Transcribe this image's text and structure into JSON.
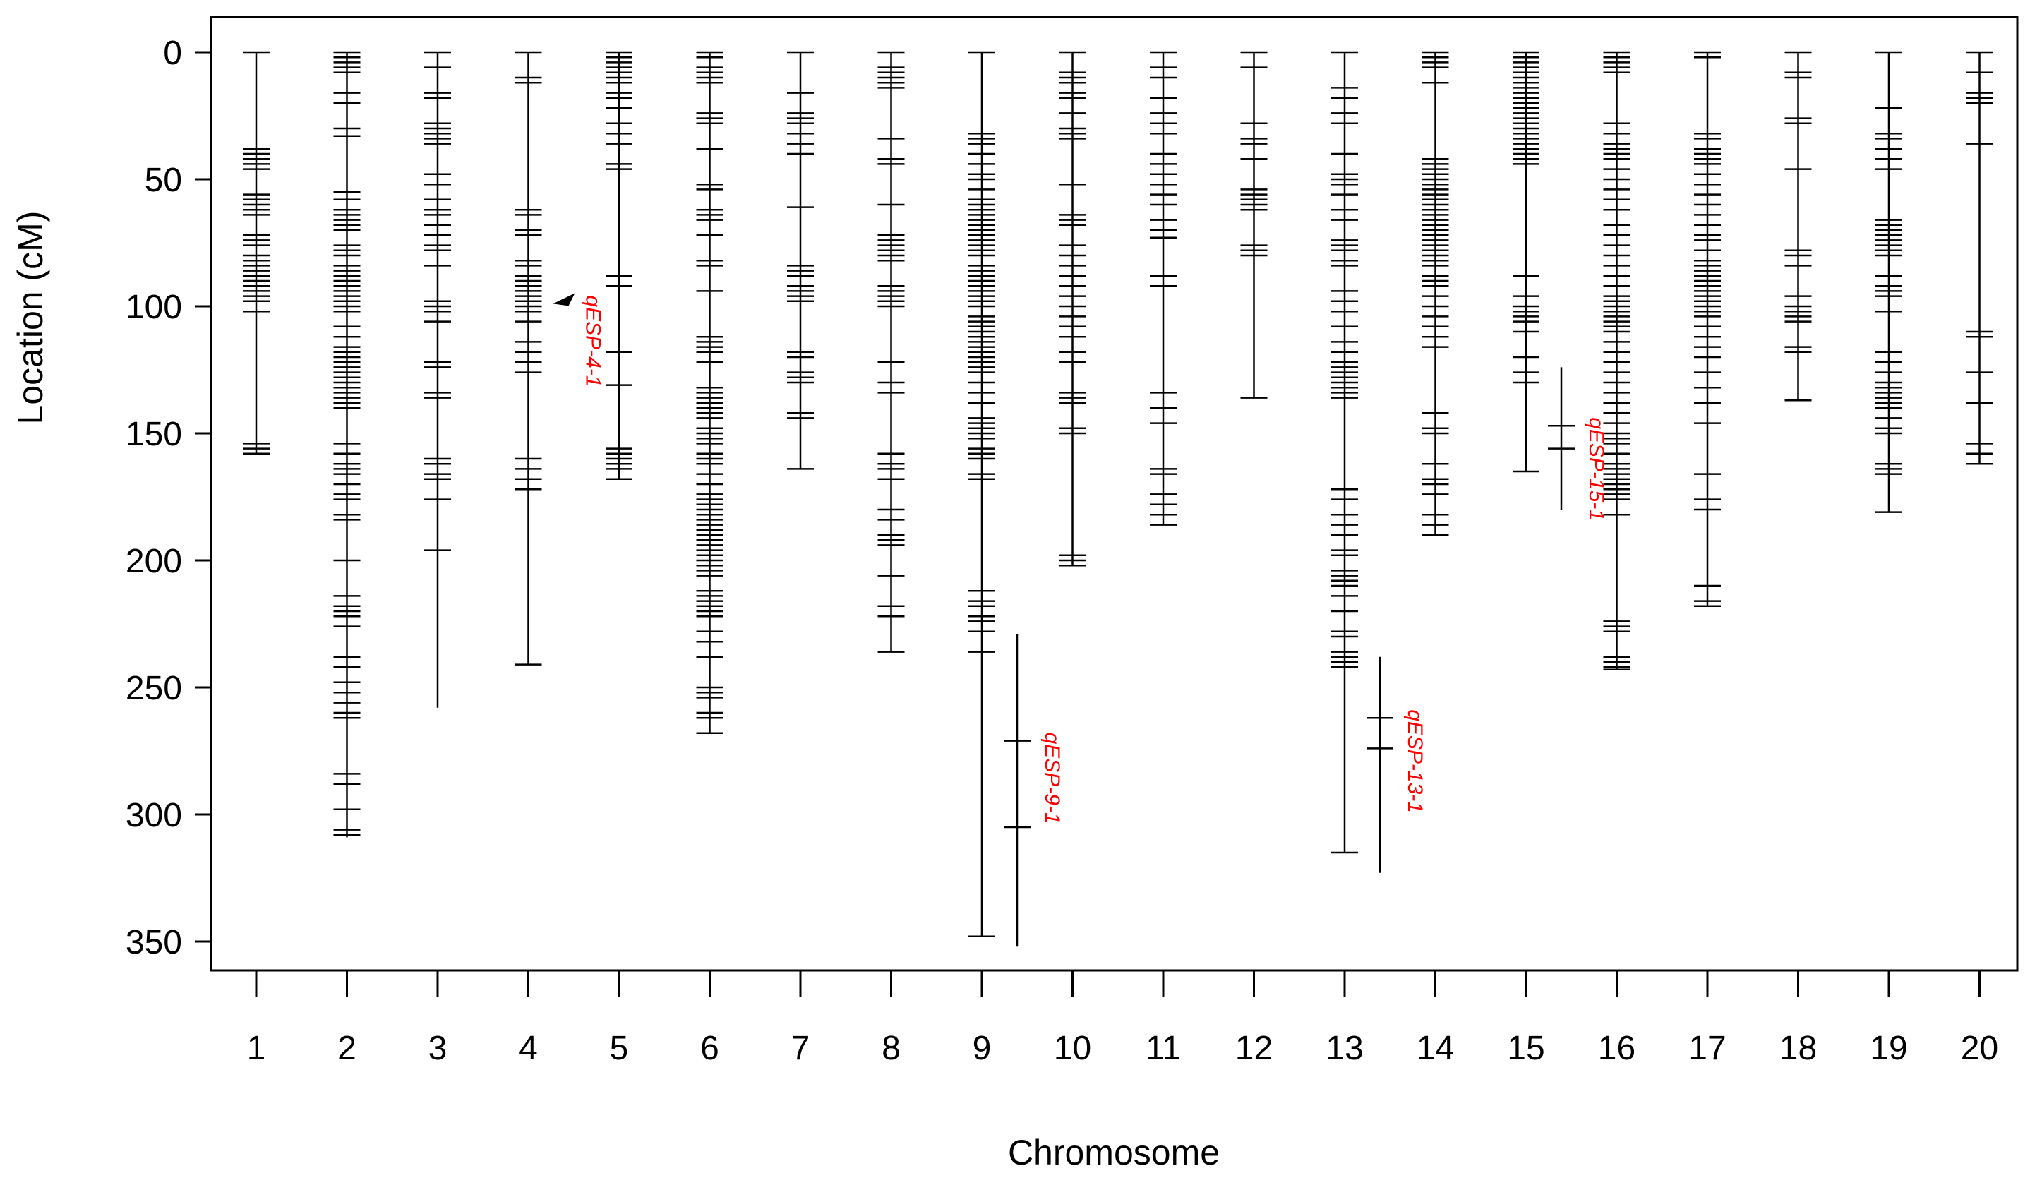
{
  "chart_data": {
    "type": "linkage-map",
    "title": "",
    "xlabel": "Chromosome",
    "ylabel": "Location (cM)",
    "ylim": [
      0,
      362
    ],
    "y_inverted": true,
    "y_ticks": [
      0,
      50,
      100,
      150,
      200,
      250,
      300,
      350
    ],
    "categories": [
      "1",
      "2",
      "3",
      "4",
      "5",
      "6",
      "7",
      "8",
      "9",
      "10",
      "11",
      "12",
      "13",
      "14",
      "15",
      "16",
      "17",
      "18",
      "19",
      "20"
    ],
    "chromosomes": [
      {
        "name": "1",
        "length": 158,
        "markers": [
          0,
          38,
          40,
          42,
          44,
          46,
          56,
          58,
          60,
          62,
          64,
          72,
          74,
          76,
          80,
          82,
          84,
          86,
          88,
          90,
          92,
          94,
          96,
          98,
          102,
          154,
          156,
          158
        ]
      },
      {
        "name": "2",
        "length": 309,
        "markers": [
          0,
          2,
          4,
          6,
          8,
          16,
          20,
          30,
          33,
          55,
          58,
          62,
          64,
          66,
          68,
          70,
          76,
          78,
          80,
          84,
          86,
          88,
          90,
          92,
          94,
          96,
          98,
          100,
          102,
          108,
          112,
          116,
          118,
          120,
          122,
          124,
          126,
          128,
          130,
          132,
          134,
          136,
          138,
          140,
          154,
          158,
          162,
          164,
          166,
          170,
          174,
          176,
          182,
          184,
          200,
          214,
          218,
          220,
          222,
          226,
          238,
          242,
          248,
          252,
          256,
          260,
          262,
          284,
          288,
          298,
          306,
          308
        ]
      },
      {
        "name": "3",
        "length": 258,
        "markers": [
          0,
          6,
          16,
          18,
          28,
          30,
          32,
          34,
          36,
          48,
          52,
          58,
          62,
          64,
          68,
          72,
          76,
          78,
          84,
          98,
          100,
          102,
          106,
          122,
          124,
          134,
          136,
          160,
          162,
          166,
          168,
          176,
          196
        ]
      },
      {
        "name": "4",
        "length": 241,
        "markers": [
          0,
          10,
          12,
          62,
          64,
          70,
          72,
          82,
          84,
          88,
          90,
          92,
          94,
          96,
          98,
          100,
          102,
          106,
          114,
          118,
          122,
          126,
          160,
          164,
          168,
          172,
          241
        ]
      },
      {
        "name": "5",
        "length": 168,
        "markers": [
          0,
          2,
          4,
          6,
          8,
          10,
          12,
          16,
          18,
          22,
          28,
          32,
          36,
          44,
          46,
          88,
          92,
          118,
          131,
          156,
          158,
          160,
          162,
          164,
          168
        ]
      },
      {
        "name": "6",
        "length": 268,
        "markers": [
          0,
          2,
          6,
          8,
          10,
          12,
          24,
          26,
          28,
          38,
          52,
          54,
          62,
          64,
          66,
          72,
          82,
          84,
          94,
          112,
          114,
          116,
          118,
          122,
          132,
          134,
          136,
          138,
          140,
          142,
          144,
          148,
          150,
          152,
          154,
          158,
          160,
          162,
          166,
          170,
          174,
          176,
          178,
          180,
          182,
          184,
          186,
          188,
          190,
          192,
          194,
          196,
          198,
          200,
          202,
          204,
          206,
          212,
          214,
          216,
          218,
          220,
          222,
          228,
          232,
          238,
          250,
          252,
          254,
          260,
          262,
          268
        ]
      },
      {
        "name": "7",
        "length": 164,
        "markers": [
          0,
          16,
          24,
          26,
          28,
          32,
          36,
          40,
          61,
          84,
          86,
          88,
          92,
          94,
          96,
          98,
          118,
          120,
          126,
          128,
          130,
          142,
          144,
          164
        ]
      },
      {
        "name": "8",
        "length": 236,
        "markers": [
          0,
          6,
          8,
          10,
          12,
          14,
          34,
          42,
          44,
          60,
          72,
          74,
          76,
          78,
          80,
          82,
          92,
          94,
          96,
          98,
          100,
          122,
          130,
          134,
          158,
          162,
          164,
          168,
          180,
          184,
          190,
          192,
          194,
          206,
          218,
          222,
          236
        ]
      },
      {
        "name": "9",
        "length": 348,
        "markers": [
          0,
          32,
          34,
          36,
          40,
          44,
          48,
          50,
          54,
          58,
          60,
          62,
          64,
          66,
          68,
          70,
          72,
          74,
          76,
          78,
          80,
          84,
          86,
          88,
          90,
          92,
          94,
          96,
          98,
          100,
          104,
          106,
          108,
          110,
          112,
          114,
          116,
          118,
          120,
          122,
          124,
          126,
          130,
          134,
          138,
          144,
          146,
          148,
          150,
          152,
          156,
          158,
          160,
          166,
          168,
          212,
          216,
          218,
          222,
          224,
          228,
          236,
          348
        ]
      },
      {
        "name": "10",
        "length": 202,
        "markers": [
          0,
          8,
          10,
          12,
          16,
          18,
          24,
          30,
          32,
          34,
          52,
          64,
          66,
          68,
          76,
          80,
          84,
          88,
          92,
          96,
          100,
          104,
          108,
          112,
          118,
          122,
          134,
          136,
          138,
          148,
          150,
          198,
          200,
          202
        ]
      },
      {
        "name": "11",
        "length": 186,
        "markers": [
          0,
          6,
          10,
          18,
          24,
          28,
          32,
          40,
          44,
          48,
          52,
          56,
          60,
          66,
          70,
          73,
          88,
          92,
          134,
          140,
          146,
          164,
          166,
          174,
          178,
          182,
          186
        ]
      },
      {
        "name": "12",
        "length": 136,
        "markers": [
          0,
          6,
          28,
          34,
          36,
          42,
          54,
          56,
          58,
          60,
          62,
          76,
          78,
          80,
          136
        ]
      },
      {
        "name": "13",
        "length": 315,
        "markers": [
          0,
          14,
          18,
          24,
          28,
          40,
          48,
          50,
          52,
          56,
          62,
          66,
          74,
          76,
          78,
          82,
          84,
          94,
          98,
          102,
          108,
          114,
          118,
          122,
          124,
          126,
          128,
          130,
          132,
          134,
          136,
          172,
          176,
          182,
          186,
          190,
          196,
          198,
          204,
          206,
          208,
          210,
          214,
          220,
          228,
          230,
          236,
          238,
          240,
          242,
          315
        ]
      },
      {
        "name": "14",
        "length": 190,
        "markers": [
          0,
          2,
          4,
          6,
          12,
          42,
          44,
          46,
          48,
          50,
          52,
          54,
          56,
          58,
          60,
          62,
          64,
          66,
          68,
          70,
          72,
          74,
          76,
          78,
          80,
          82,
          84,
          88,
          90,
          92,
          96,
          100,
          104,
          108,
          112,
          116,
          142,
          148,
          150,
          162,
          168,
          170,
          174,
          182,
          186,
          190
        ]
      },
      {
        "name": "15",
        "length": 165,
        "markers": [
          0,
          2,
          4,
          6,
          8,
          10,
          12,
          14,
          16,
          18,
          20,
          22,
          24,
          26,
          28,
          30,
          32,
          34,
          36,
          38,
          40,
          42,
          44,
          88,
          96,
          100,
          102,
          104,
          106,
          110,
          120,
          126,
          130,
          165
        ]
      },
      {
        "name": "16",
        "length": 243,
        "markers": [
          0,
          2,
          4,
          6,
          8,
          28,
          32,
          36,
          38,
          40,
          42,
          46,
          50,
          54,
          58,
          62,
          68,
          72,
          76,
          80,
          84,
          88,
          92,
          96,
          98,
          100,
          102,
          104,
          106,
          108,
          110,
          114,
          118,
          122,
          126,
          130,
          134,
          138,
          142,
          146,
          150,
          152,
          154,
          158,
          162,
          164,
          166,
          168,
          170,
          172,
          174,
          176,
          182,
          224,
          226,
          228,
          238,
          240,
          242,
          243
        ]
      },
      {
        "name": "17",
        "length": 218,
        "markers": [
          0,
          2,
          32,
          34,
          38,
          40,
          42,
          44,
          48,
          52,
          56,
          60,
          64,
          68,
          72,
          74,
          78,
          82,
          84,
          86,
          88,
          90,
          92,
          94,
          96,
          98,
          100,
          102,
          104,
          108,
          112,
          116,
          120,
          126,
          132,
          138,
          146,
          166,
          176,
          180,
          210,
          216,
          218
        ]
      },
      {
        "name": "18",
        "length": 137,
        "markers": [
          0,
          8,
          10,
          26,
          28,
          46,
          78,
          80,
          84,
          96,
          100,
          102,
          104,
          106,
          116,
          118,
          137
        ]
      },
      {
        "name": "19",
        "length": 181,
        "markers": [
          0,
          22,
          32,
          34,
          38,
          42,
          46,
          66,
          68,
          70,
          72,
          74,
          76,
          78,
          80,
          88,
          92,
          94,
          96,
          102,
          118,
          122,
          126,
          130,
          132,
          134,
          136,
          138,
          140,
          144,
          148,
          150,
          162,
          164,
          166,
          181
        ]
      },
      {
        "name": "20",
        "length": 162,
        "markers": [
          0,
          8,
          16,
          18,
          20,
          36,
          110,
          112,
          126,
          138,
          154,
          158,
          162
        ]
      }
    ],
    "qtls": [
      {
        "label": "qESP-4-1",
        "chromosome": "4",
        "type": "arrow",
        "position": 99
      },
      {
        "label": "qESP-9-1",
        "chromosome": "9",
        "start": 229,
        "end": 352,
        "ticks": [
          271,
          305
        ]
      },
      {
        "label": "qESP-13-1",
        "chromosome": "13",
        "start": 238,
        "end": 323,
        "ticks": [
          262,
          274
        ]
      },
      {
        "label": "qESP-15-1",
        "chromosome": "15",
        "start": 124,
        "end": 180,
        "ticks": [
          147,
          156
        ]
      }
    ],
    "colors": {
      "axis": "#000000",
      "marker": "#000000",
      "qtl": "#ff0000"
    }
  }
}
